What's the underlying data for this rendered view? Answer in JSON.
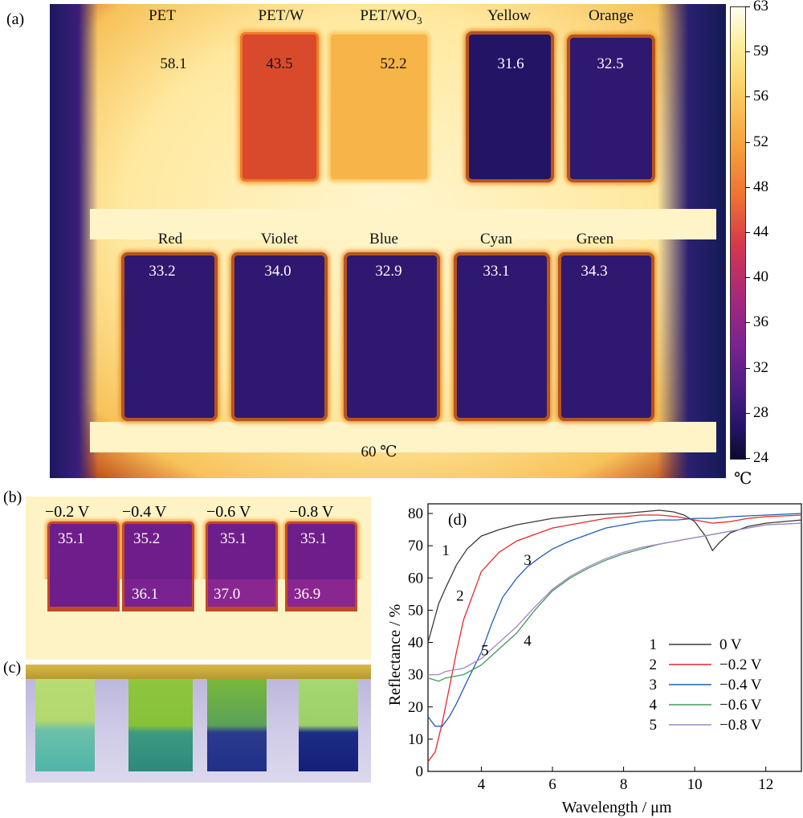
{
  "panel_labels": {
    "a": "(a)",
    "b": "(b)",
    "c": "(c)",
    "d": "(d)"
  },
  "panel_a": {
    "samples_top": [
      {
        "name": "PET",
        "temp": "58.1"
      },
      {
        "name": "PET/W",
        "temp": "43.5"
      },
      {
        "name": "PET/WO",
        "sub": "3",
        "temp": "52.2"
      },
      {
        "name": "Yellow",
        "temp": "31.6"
      },
      {
        "name": "Orange",
        "temp": "32.5"
      }
    ],
    "samples_bottom": [
      {
        "name": "Red",
        "temp": "33.2"
      },
      {
        "name": "Violet",
        "temp": "34.0"
      },
      {
        "name": "Blue",
        "temp": "32.9"
      },
      {
        "name": "Cyan",
        "temp": "33.1"
      },
      {
        "name": "Green",
        "temp": "34.3"
      }
    ],
    "stage_temp": "60 ℃"
  },
  "colorbar": {
    "ticks": [
      "63",
      "59",
      "56",
      "52",
      "48",
      "44",
      "40",
      "36",
      "32",
      "28",
      "24"
    ],
    "unit": "℃",
    "colors": {
      "hot": "#fefef2",
      "mid": "#ef7131",
      "cold": "#0a0a2e"
    }
  },
  "panel_b": {
    "samples": [
      {
        "voltage": "−0.2 V",
        "top_temp": "35.1",
        "bottom_temp": ""
      },
      {
        "voltage": "−0.4 V",
        "top_temp": "35.2",
        "bottom_temp": "36.1"
      },
      {
        "voltage": "−0.6 V",
        "top_temp": "35.1",
        "bottom_temp": "37.0"
      },
      {
        "voltage": "−0.8 V",
        "top_temp": "35.1",
        "bottom_temp": "36.9"
      }
    ]
  },
  "chart_data": {
    "type": "line",
    "xlabel": "Wavelength / μm",
    "ylabel": "Reflectance / %",
    "xlim": [
      2.5,
      13
    ],
    "ylim": [
      0,
      83
    ],
    "xticks": [
      4,
      6,
      8,
      10,
      12
    ],
    "yticks": [
      0,
      10,
      20,
      30,
      40,
      50,
      60,
      70,
      80
    ],
    "grid": false,
    "legend_position": "bottom-right",
    "series": [
      {
        "name": "0 V",
        "label": "1",
        "color": "#3a3a3a",
        "x": [
          2.5,
          2.8,
          3.0,
          3.3,
          3.6,
          4.0,
          4.5,
          5.0,
          5.5,
          6.0,
          6.5,
          7.0,
          8.0,
          8.5,
          9.0,
          9.4,
          9.7,
          10.0,
          10.3,
          10.5,
          10.7,
          11.0,
          11.5,
          12.0,
          13.0
        ],
        "y": [
          40,
          52,
          57,
          64,
          69,
          73,
          75,
          76.5,
          77.5,
          78.5,
          79,
          79.5,
          80,
          80.5,
          81,
          80.5,
          79.5,
          77.5,
          73,
          68.5,
          71,
          74,
          76,
          77,
          78
        ]
      },
      {
        "name": "−0.2 V",
        "label": "2",
        "color": "#e8262a",
        "x": [
          2.5,
          2.7,
          2.9,
          3.1,
          3.3,
          3.5,
          3.8,
          4.0,
          4.5,
          5.0,
          5.5,
          6.0,
          6.5,
          7.0,
          7.5,
          8.0,
          8.5,
          9.0,
          9.5,
          10.0,
          10.5,
          11.0,
          11.5,
          12.0,
          13.0
        ],
        "y": [
          3,
          6,
          15,
          26,
          37,
          47,
          56,
          62,
          68,
          71.5,
          73.5,
          75.5,
          76.5,
          77.5,
          78.5,
          79,
          79.5,
          79.5,
          79,
          78,
          77,
          77.5,
          78.5,
          79,
          79.5
        ]
      },
      {
        "name": "−0.4 V",
        "label": "3",
        "color": "#1f5fb4",
        "x": [
          2.5,
          2.7,
          2.9,
          3.1,
          3.3,
          3.6,
          4.0,
          4.3,
          4.6,
          5.0,
          5.3,
          5.6,
          6.0,
          6.5,
          7.0,
          7.5,
          8.0,
          8.5,
          9.0,
          9.5,
          10.0,
          10.5,
          11.0,
          12.0,
          13.0
        ],
        "y": [
          17,
          14,
          14,
          17,
          21,
          28,
          37,
          46,
          54,
          60,
          63.5,
          66,
          69,
          71.5,
          73.5,
          75.5,
          76.5,
          77.5,
          78,
          78,
          78.5,
          78.5,
          79,
          79.5,
          80
        ]
      },
      {
        "name": "−0.6 V",
        "label": "4",
        "color": "#3f9a5a",
        "x": [
          2.5,
          2.8,
          3.0,
          3.5,
          4.0,
          4.5,
          5.0,
          5.5,
          6.0,
          6.5,
          7.0,
          7.5,
          8.0,
          8.5,
          9.0,
          9.5,
          10.0,
          10.5,
          11.0,
          11.5,
          12.0,
          13.0
        ],
        "y": [
          29,
          28,
          29,
          30,
          33,
          38,
          43,
          50,
          56,
          60,
          63,
          65.5,
          67.5,
          69,
          70.5,
          71.5,
          72.5,
          73.5,
          74.5,
          75.5,
          76.5,
          77
        ]
      },
      {
        "name": "−0.8 V",
        "label": "5",
        "color": "#a884c9",
        "x": [
          2.5,
          2.8,
          3.0,
          3.5,
          4.0,
          4.5,
          5.0,
          5.5,
          6.0,
          6.5,
          7.0,
          7.5,
          8.0,
          8.5,
          9.0,
          9.5,
          10.0,
          10.5,
          11.0,
          11.5,
          12.0,
          13.0
        ],
        "y": [
          30,
          30,
          31,
          32,
          35,
          40,
          45,
          51,
          56.5,
          60.5,
          63.5,
          66,
          68,
          69.5,
          70.5,
          71.5,
          72.5,
          73.5,
          74.5,
          75.5,
          76.5,
          77
        ]
      }
    ],
    "curve_labels": [
      {
        "text": "1",
        "x": 3.0,
        "y": 67
      },
      {
        "text": "2",
        "x": 3.4,
        "y": 53
      },
      {
        "text": "3",
        "x": 5.3,
        "y": 64
      },
      {
        "text": "4",
        "x": 5.3,
        "y": 39
      },
      {
        "text": "5",
        "x": 4.1,
        "y": 36
      }
    ]
  }
}
